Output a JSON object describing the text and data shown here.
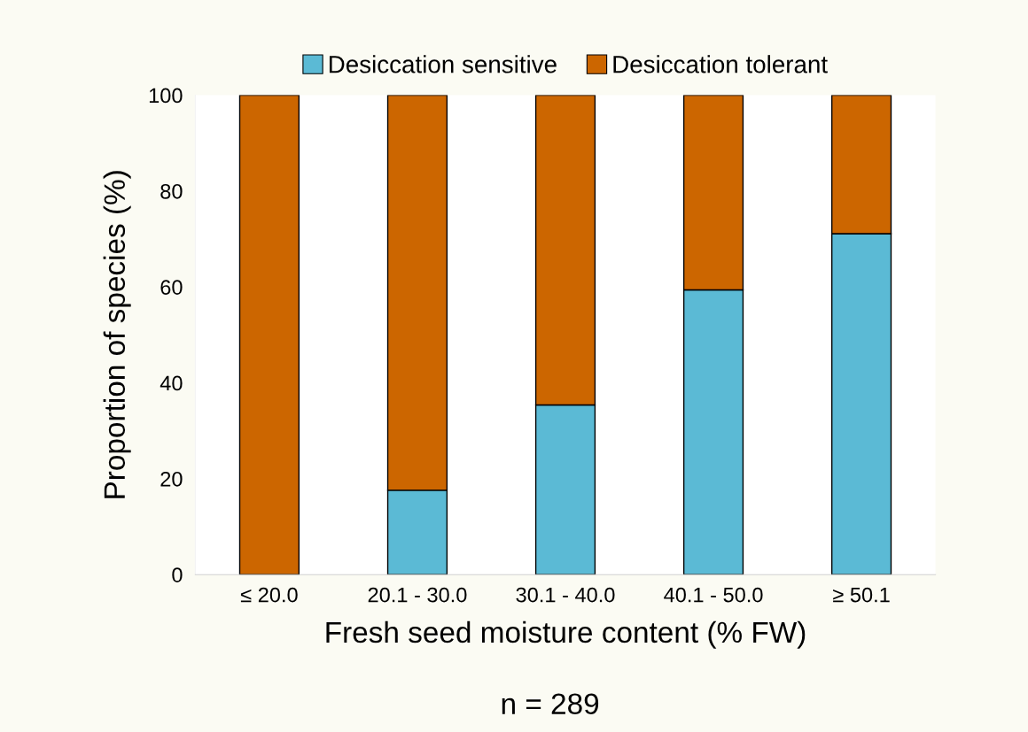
{
  "chart_data": {
    "type": "bar",
    "stacked": true,
    "categories": [
      "≤ 20.0",
      "20.1 - 30.0",
      "30.1 - 40.0",
      "40.1 - 50.0",
      "≥ 50.1"
    ],
    "series": [
      {
        "name": "Desiccation sensitive",
        "color": "#5bbad5",
        "values": [
          0,
          17.6,
          35.4,
          59.4,
          71.1
        ]
      },
      {
        "name": "Desiccation tolerant",
        "color": "#cc6600",
        "values": [
          100,
          82.4,
          64.6,
          40.6,
          28.9
        ]
      }
    ],
    "xlabel": "Fresh seed moisture content (% FW)",
    "ylabel": "Proportion of species (%)",
    "ylim": [
      0,
      100
    ],
    "yticks": [
      0,
      20,
      40,
      60,
      80,
      100
    ],
    "grid": false,
    "legend": "top",
    "annotations": [
      "n = 289"
    ]
  }
}
